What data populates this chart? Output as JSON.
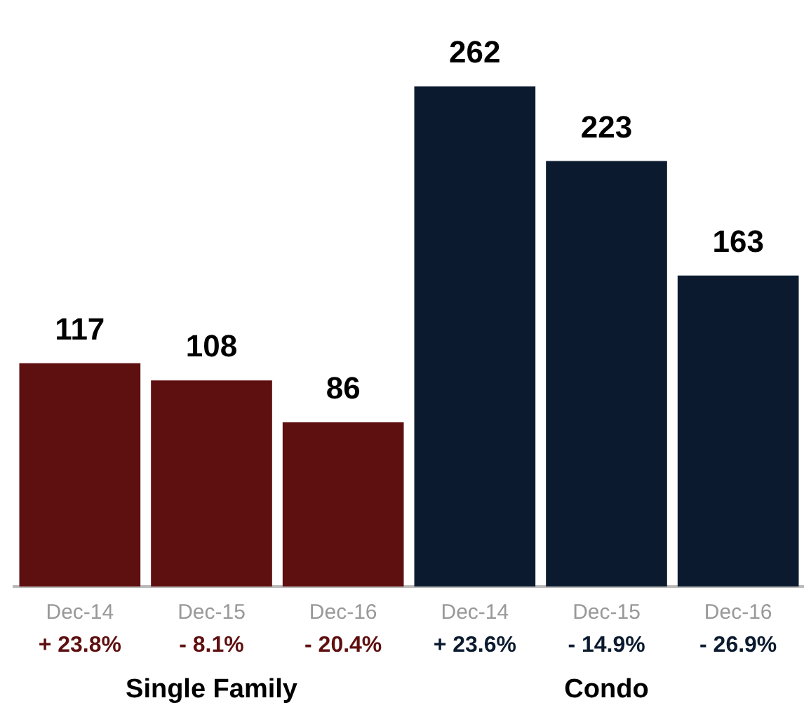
{
  "chart_data": {
    "type": "bar",
    "categories": [
      "Dec-14",
      "Dec-15",
      "Dec-16",
      "Dec-14",
      "Dec-15",
      "Dec-16"
    ],
    "series": [
      {
        "color": "#5e0f0f",
        "values": [
          117,
          108,
          86,
          null,
          null,
          null
        ]
      },
      {
        "color": "#0b1a2f",
        "values": [
          null,
          null,
          null,
          262,
          223,
          163
        ]
      }
    ],
    "tick_labels": "x",
    "grid": false,
    "legend": false,
    "data_labels": true,
    "annotations": [
      "+ 23.8%",
      "- 8.1%",
      "- 20.4%",
      "+ 23.6%",
      "- 14.9%",
      "- 26.9%",
      "Single Family",
      "Condo"
    ]
  }
}
